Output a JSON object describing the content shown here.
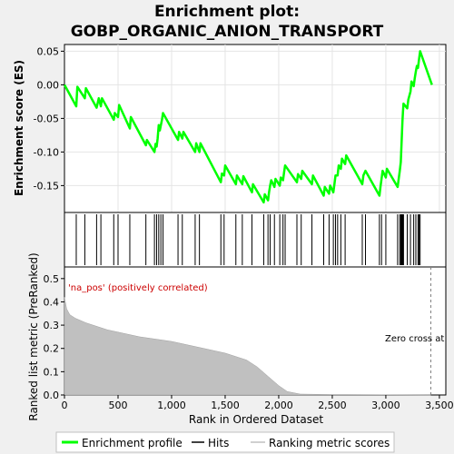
{
  "title_line1": "Enrichment plot:",
  "title_line2": "GOBP_ORGANIC_ANION_TRANSPORT",
  "colors": {
    "enrichment_line": "#00ff00",
    "hits": "#000000",
    "metric_fill": "#c0c0c0",
    "pos_label": "#cc0000",
    "plot_bg": "#ffffff",
    "page_bg": "#f0f0f0"
  },
  "labels": {
    "na_pos": "'na_pos' (positively correlated)",
    "zero_cross": "Zero cross at"
  },
  "legend": {
    "enrichment": "Enrichment profile",
    "hits": "Hits",
    "metric": "Ranking metric scores"
  },
  "chart_data": [
    {
      "type": "line",
      "name": "enrichment-profile",
      "ylabel": "Enrichment score (ES)",
      "xlim": [
        0,
        3560
      ],
      "ylim": [
        -0.19,
        0.06
      ],
      "yticks": [
        0.05,
        0.0,
        -0.05,
        -0.1,
        -0.15
      ],
      "ytick_labels": [
        "0.05",
        "0.00",
        "-0.05",
        "-0.10",
        "-0.15"
      ],
      "grid": true,
      "points": [
        [
          0,
          0.0
        ],
        [
          110,
          -0.032
        ],
        [
          120,
          -0.003
        ],
        [
          190,
          -0.02
        ],
        [
          200,
          -0.005
        ],
        [
          300,
          -0.034
        ],
        [
          320,
          -0.02
        ],
        [
          340,
          -0.032
        ],
        [
          350,
          -0.02
        ],
        [
          460,
          -0.052
        ],
        [
          470,
          -0.042
        ],
        [
          500,
          -0.048
        ],
        [
          510,
          -0.03
        ],
        [
          610,
          -0.065
        ],
        [
          620,
          -0.048
        ],
        [
          760,
          -0.09
        ],
        [
          770,
          -0.082
        ],
        [
          840,
          -0.1
        ],
        [
          850,
          -0.088
        ],
        [
          860,
          -0.092
        ],
        [
          870,
          -0.08
        ],
        [
          880,
          -0.06
        ],
        [
          890,
          -0.068
        ],
        [
          900,
          -0.06
        ],
        [
          910,
          -0.052
        ],
        [
          920,
          -0.042
        ],
        [
          1060,
          -0.082
        ],
        [
          1070,
          -0.07
        ],
        [
          1100,
          -0.08
        ],
        [
          1110,
          -0.07
        ],
        [
          1220,
          -0.1
        ],
        [
          1230,
          -0.087
        ],
        [
          1260,
          -0.1
        ],
        [
          1270,
          -0.087
        ],
        [
          1460,
          -0.145
        ],
        [
          1470,
          -0.132
        ],
        [
          1490,
          -0.135
        ],
        [
          1500,
          -0.12
        ],
        [
          1600,
          -0.148
        ],
        [
          1610,
          -0.135
        ],
        [
          1660,
          -0.148
        ],
        [
          1670,
          -0.136
        ],
        [
          1750,
          -0.16
        ],
        [
          1760,
          -0.148
        ],
        [
          1860,
          -0.175
        ],
        [
          1870,
          -0.163
        ],
        [
          1900,
          -0.172
        ],
        [
          1910,
          -0.16
        ],
        [
          1920,
          -0.15
        ],
        [
          1930,
          -0.142
        ],
        [
          1960,
          -0.152
        ],
        [
          1970,
          -0.14
        ],
        [
          2010,
          -0.15
        ],
        [
          2020,
          -0.138
        ],
        [
          2040,
          -0.142
        ],
        [
          2050,
          -0.13
        ],
        [
          2060,
          -0.12
        ],
        [
          2170,
          -0.145
        ],
        [
          2180,
          -0.133
        ],
        [
          2210,
          -0.14
        ],
        [
          2220,
          -0.128
        ],
        [
          2310,
          -0.148
        ],
        [
          2320,
          -0.135
        ],
        [
          2420,
          -0.165
        ],
        [
          2430,
          -0.152
        ],
        [
          2470,
          -0.162
        ],
        [
          2480,
          -0.15
        ],
        [
          2510,
          -0.16
        ],
        [
          2520,
          -0.148
        ],
        [
          2530,
          -0.135
        ],
        [
          2550,
          -0.135
        ],
        [
          2560,
          -0.12
        ],
        [
          2580,
          -0.125
        ],
        [
          2590,
          -0.11
        ],
        [
          2620,
          -0.118
        ],
        [
          2630,
          -0.105
        ],
        [
          2780,
          -0.148
        ],
        [
          2790,
          -0.135
        ],
        [
          2810,
          -0.128
        ],
        [
          2940,
          -0.165
        ],
        [
          2950,
          -0.152
        ],
        [
          2960,
          -0.14
        ],
        [
          2970,
          -0.128
        ],
        [
          3000,
          -0.138
        ],
        [
          3010,
          -0.125
        ],
        [
          3110,
          -0.152
        ],
        [
          3120,
          -0.14
        ],
        [
          3130,
          -0.128
        ],
        [
          3140,
          -0.115
        ],
        [
          3145,
          -0.095
        ],
        [
          3150,
          -0.075
        ],
        [
          3155,
          -0.055
        ],
        [
          3160,
          -0.04
        ],
        [
          3165,
          -0.028
        ],
        [
          3200,
          -0.035
        ],
        [
          3210,
          -0.022
        ],
        [
          3230,
          -0.01
        ],
        [
          3240,
          0.005
        ],
        [
          3260,
          -0.002
        ],
        [
          3270,
          0.01
        ],
        [
          3280,
          0.02
        ],
        [
          3290,
          0.028
        ],
        [
          3300,
          0.025
        ],
        [
          3310,
          0.038
        ],
        [
          3320,
          0.05
        ],
        [
          3430,
          0.0
        ]
      ]
    },
    {
      "type": "scatter",
      "name": "hits",
      "x": [
        110,
        190,
        300,
        340,
        460,
        500,
        610,
        760,
        840,
        860,
        880,
        900,
        920,
        1060,
        1100,
        1220,
        1260,
        1460,
        1490,
        1600,
        1660,
        1750,
        1860,
        1900,
        1920,
        1960,
        2010,
        2040,
        2060,
        2170,
        2210,
        2310,
        2420,
        2470,
        2510,
        2530,
        2550,
        2580,
        2620,
        2780,
        2810,
        2940,
        2960,
        3000,
        3110,
        3130,
        3140,
        3145,
        3150,
        3155,
        3160,
        3165,
        3200,
        3230,
        3260,
        3280,
        3300,
        3310,
        3320
      ]
    },
    {
      "type": "area",
      "name": "ranking-metric",
      "ylabel": "Ranked list metric (PreRanked)",
      "xlabel": "Rank in Ordered Dataset",
      "xlim": [
        0,
        3560
      ],
      "ylim": [
        0.0,
        0.55
      ],
      "xticks": [
        0,
        500,
        1000,
        1500,
        2000,
        2500,
        3000,
        3500
      ],
      "xtick_labels": [
        "0",
        "500",
        "1,000",
        "1,500",
        "2,000",
        "2,500",
        "3,000",
        "3,500"
      ],
      "yticks": [
        0.0,
        0.1,
        0.2,
        0.3,
        0.4,
        0.5
      ],
      "ytick_labels": [
        "0.0",
        "0.1",
        "0.2",
        "0.3",
        "0.4",
        "0.5"
      ],
      "points": [
        [
          0,
          0.42
        ],
        [
          20,
          0.37
        ],
        [
          50,
          0.345
        ],
        [
          100,
          0.33
        ],
        [
          200,
          0.31
        ],
        [
          400,
          0.28
        ],
        [
          700,
          0.25
        ],
        [
          1000,
          0.23
        ],
        [
          1300,
          0.2
        ],
        [
          1500,
          0.18
        ],
        [
          1700,
          0.15
        ],
        [
          1800,
          0.12
        ],
        [
          1900,
          0.08
        ],
        [
          2000,
          0.04
        ],
        [
          2080,
          0.015
        ],
        [
          2200,
          0.004
        ],
        [
          2500,
          0.002
        ],
        [
          3420,
          0.0
        ]
      ],
      "zero_cross_rank": 3420
    }
  ]
}
